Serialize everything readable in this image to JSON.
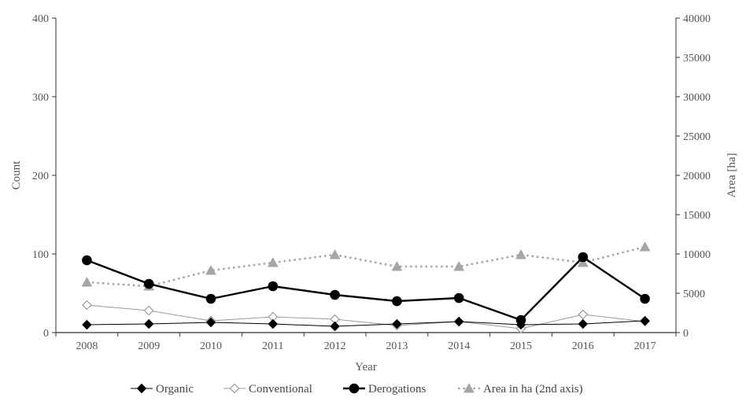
{
  "chart_data": {
    "type": "line",
    "title": "",
    "xlabel": "Year",
    "ylabel": "Count",
    "y2label": "Area [ha]",
    "categories": [
      "2008",
      "2009",
      "2010",
      "2011",
      "2012",
      "2013",
      "2014",
      "2015",
      "2016",
      "2017"
    ],
    "ylim": [
      0,
      400
    ],
    "yticks": [
      "0",
      "100",
      "200",
      "300",
      "400"
    ],
    "y2lim": [
      0,
      40000
    ],
    "y2ticks": [
      "0",
      "5000",
      "10000",
      "15000",
      "20000",
      "25000",
      "30000",
      "35000",
      "40000"
    ],
    "grid": false,
    "legend_position": "bottom",
    "series": [
      {
        "name": "Organic",
        "axis": "left",
        "marker": "diamond-filled",
        "line_style": "solid-thin",
        "color": "#000000",
        "values": [
          10,
          11,
          13,
          11,
          8,
          11,
          14,
          10,
          11,
          15
        ]
      },
      {
        "name": "Conventional",
        "axis": "left",
        "marker": "diamond-open",
        "line_style": "solid-thin",
        "color": "#999999",
        "values": [
          35,
          28,
          15,
          20,
          17,
          9,
          14,
          5,
          23,
          14
        ]
      },
      {
        "name": "Derogations",
        "axis": "left",
        "marker": "circle-filled",
        "line_style": "solid-thick",
        "color": "#000000",
        "values": [
          92,
          62,
          43,
          59,
          48,
          40,
          44,
          16,
          96,
          43
        ]
      },
      {
        "name": "Area in ha (2nd axis)",
        "axis": "right",
        "marker": "triangle-filled",
        "line_style": "dotted",
        "color": "#a6a6a6",
        "values": [
          6400,
          5900,
          7900,
          8900,
          9900,
          8400,
          8400,
          9900,
          8900,
          10900
        ]
      }
    ]
  }
}
